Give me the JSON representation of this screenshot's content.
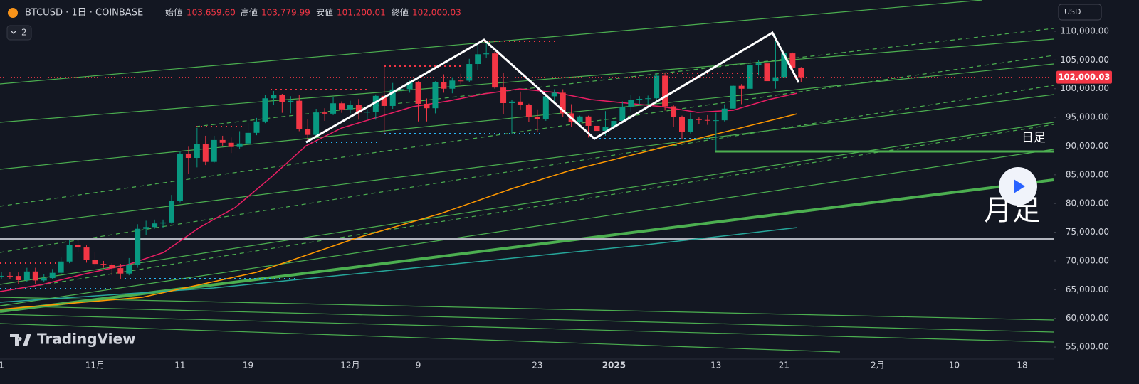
{
  "header": {
    "symbol": "BTCUSD · 1日 · COINBASE",
    "open_label": "始値",
    "open": "103,659.60",
    "high_label": "高値",
    "high": "103,779.99",
    "low_label": "安値",
    "low": "101,200.01",
    "close_label": "終値",
    "close": "102,000.03",
    "indicator_count": "2",
    "currency": "USD",
    "logo": "TradingView"
  },
  "annotations": {
    "daily": "日足",
    "monthly": "月足",
    "last_price": "102,000.03"
  },
  "chart_data": {
    "type": "candlestick",
    "up_color": "#089981",
    "down_color": "#f23645",
    "ylim": [
      52900,
      115450
    ],
    "yticks": [
      {
        "value": 55000,
        "label": "55,000.00"
      },
      {
        "value": 60000,
        "label": "60,000.00"
      },
      {
        "value": 65000,
        "label": "65,000.00"
      },
      {
        "value": 70000,
        "label": "70,000.00"
      },
      {
        "value": 75000,
        "label": "75,000.00"
      },
      {
        "value": 80000,
        "label": "80,000.00"
      },
      {
        "value": 85000,
        "label": "85,000.00"
      },
      {
        "value": 90000,
        "label": "90,000.00"
      },
      {
        "value": 95000,
        "label": "95,000.00"
      },
      {
        "value": 100000,
        "label": "100,000.00"
      },
      {
        "value": 105000,
        "label": "105,000.00"
      },
      {
        "value": 110000,
        "label": "110,000.00"
      }
    ],
    "categories": [
      "1",
      null,
      null,
      null,
      null,
      null,
      null,
      null,
      null,
      null,
      null,
      "11月",
      null,
      null,
      null,
      null,
      null,
      null,
      null,
      null,
      null,
      "11",
      null,
      null,
      null,
      null,
      null,
      null,
      null,
      "19",
      null,
      null,
      null,
      null,
      null,
      null,
      null,
      null,
      null,
      null,
      null,
      "12月",
      null,
      null,
      null,
      null,
      null,
      null,
      null,
      "9",
      null,
      null,
      null,
      null,
      null,
      null,
      null,
      null,
      null,
      null,
      null,
      null,
      null,
      "23",
      null,
      null,
      null,
      null,
      null,
      null,
      null,
      null,
      "2025",
      null,
      null,
      null,
      null,
      null,
      null,
      null,
      null,
      null,
      null,
      null,
      "13",
      null,
      null,
      null,
      null,
      null,
      null,
      null,
      "21",
      null,
      null,
      null,
      null,
      null,
      null,
      null,
      null,
      null,
      null,
      "2月",
      null,
      null,
      null,
      null,
      null,
      null,
      null,
      null,
      "10",
      null,
      null,
      null,
      null,
      null,
      null,
      null,
      "18"
    ],
    "open": [
      67360,
      67400,
      67380,
      66650,
      68160,
      66600,
      67010,
      67930,
      69900,
      72720,
      72340,
      70210,
      69480,
      69310,
      68740,
      67800,
      69370,
      75600,
      75900,
      76530,
      76700,
      80400,
      88700,
      87950,
      90400,
      87250,
      91060,
      90580,
      89850,
      90460,
      92310,
      94290,
      98330,
      98900,
      97700,
      97900,
      93010,
      91960,
      95860,
      95650,
      97460,
      96400,
      97180,
      95840,
      96000,
      98750,
      97000,
      99860,
      99920,
      101170,
      97370,
      96600,
      101130,
      100000,
      101420,
      101400,
      104300,
      106000,
      106140,
      100200,
      97490,
      97760,
      97220,
      95100,
      94700,
      98680,
      99300,
      95700,
      94170,
      95160,
      93530,
      92650,
      93390,
      94390,
      96880,
      98110,
      98230,
      98330,
      102260,
      96930,
      95040,
      92500,
      94720,
      94550,
      94480,
      94500,
      96530,
      100500,
      99990,
      104080,
      104410,
      101320,
      102000,
      106150,
      103659.6,
      null,
      null,
      null,
      null,
      null,
      null,
      null,
      null,
      null,
      null,
      null,
      null,
      null,
      null,
      null,
      null,
      null,
      null,
      null,
      null,
      null,
      null,
      null,
      null,
      null,
      null
    ],
    "high": [
      68100,
      68100,
      68000,
      68800,
      68800,
      67700,
      68600,
      70600,
      73600,
      73600,
      72700,
      71500,
      70000,
      69600,
      69500,
      70500,
      76400,
      77000,
      77200,
      77200,
      81500,
      89000,
      89900,
      93200,
      91800,
      91800,
      91800,
      91500,
      92600,
      94000,
      94900,
      98900,
      99600,
      99100,
      98700,
      98900,
      94700,
      96500,
      96600,
      98600,
      97800,
      97900,
      98200,
      96400,
      99000,
      103900,
      101000,
      100500,
      101400,
      101300,
      98300,
      101300,
      102500,
      102000,
      102600,
      105200,
      107800,
      108300,
      106500,
      102800,
      98000,
      99500,
      97400,
      96400,
      99000,
      99900,
      99900,
      97300,
      95300,
      95300,
      94900,
      96100,
      94900,
      97800,
      98900,
      98700,
      98800,
      102700,
      102700,
      97200,
      95300,
      95800,
      95000,
      95400,
      95800,
      97300,
      100700,
      100800,
      105000,
      105000,
      106300,
      109300,
      107000,
      106300,
      103779.99,
      null,
      null,
      null,
      null,
      null,
      null,
      null,
      null,
      null,
      null,
      null,
      null,
      null,
      null,
      null,
      null,
      null,
      null,
      null,
      null,
      null,
      null,
      null,
      null,
      null,
      null
    ],
    "low": [
      66800,
      66800,
      66000,
      66400,
      66000,
      66300,
      66800,
      67600,
      69600,
      71600,
      69700,
      68800,
      68800,
      67500,
      66800,
      67500,
      68800,
      74500,
      75600,
      75800,
      76500,
      80200,
      85200,
      86300,
      86700,
      87100,
      90000,
      88800,
      89500,
      90100,
      91900,
      94000,
      97200,
      95800,
      95700,
      92600,
      90800,
      91700,
      94400,
      95400,
      95800,
      95700,
      94600,
      94700,
      94600,
      92000,
      96500,
      99300,
      99300,
      94300,
      94300,
      95700,
      99300,
      99200,
      100800,
      101200,
      103300,
      105300,
      100000,
      95600,
      92200,
      96400,
      94200,
      92500,
      94400,
      97600,
      95100,
      93400,
      93800,
      91500,
      91400,
      91800,
      92900,
      94200,
      96000,
      97300,
      97300,
      97900,
      96200,
      93400,
      91200,
      92200,
      93800,
      93700,
      89260,
      94300,
      96500,
      97300,
      99900,
      102300,
      99600,
      100000,
      102300,
      102700,
      101200.01,
      null,
      null,
      null,
      null,
      null,
      null,
      null,
      null,
      null,
      null,
      null,
      null,
      null,
      null,
      null,
      null,
      null,
      null,
      null,
      null,
      null,
      null,
      null,
      null,
      null,
      null
    ],
    "close": [
      67400,
      67380,
      66650,
      68160,
      66600,
      67010,
      67930,
      69900,
      72720,
      72340,
      70210,
      69480,
      69310,
      68740,
      67800,
      69370,
      75600,
      75900,
      76530,
      76700,
      80400,
      88700,
      87950,
      90400,
      87250,
      91060,
      90580,
      89850,
      90460,
      92310,
      94290,
      98330,
      98900,
      97700,
      97900,
      93010,
      91960,
      95860,
      95650,
      97460,
      96400,
      97180,
      95840,
      96000,
      98750,
      97000,
      99860,
      99920,
      101170,
      97370,
      96600,
      101130,
      100000,
      101420,
      101400,
      104300,
      106000,
      106140,
      100200,
      97490,
      97760,
      97220,
      95100,
      94700,
      98680,
      99300,
      95700,
      94170,
      95160,
      93530,
      92650,
      93390,
      94390,
      96880,
      98110,
      98230,
      98330,
      102260,
      96930,
      95040,
      92500,
      94720,
      94550,
      94480,
      94500,
      96530,
      100500,
      99990,
      104080,
      104410,
      101320,
      102000,
      106150,
      103659.6,
      102000.03,
      null,
      null,
      null,
      null,
      null,
      null,
      null,
      null,
      null,
      null,
      null,
      null,
      null,
      null,
      null,
      null,
      null,
      null,
      null,
      null,
      null,
      null,
      null,
      null,
      null,
      null
    ]
  }
}
